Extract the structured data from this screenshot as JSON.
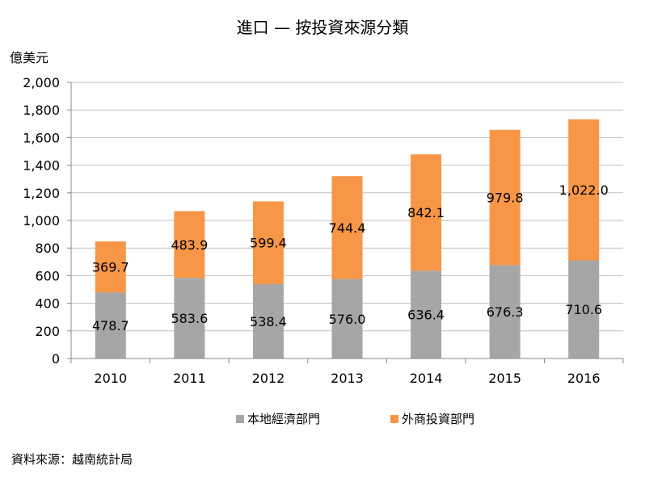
{
  "chart_data": {
    "type": "bar",
    "stacked": true,
    "title": "進口 — 按投資來源分類",
    "ylabel": "億美元",
    "xlabel": "",
    "categories": [
      "2010",
      "2011",
      "2012",
      "2013",
      "2014",
      "2015",
      "2016"
    ],
    "series": [
      {
        "name": "本地經濟部門",
        "color": "#a6a6a6",
        "values": [
          478.7,
          583.6,
          538.4,
          576.0,
          636.4,
          676.3,
          710.6
        ],
        "labels": [
          "478.7",
          "583.6",
          "538.4",
          "576.0",
          "636.4",
          "676.3",
          "710.6"
        ]
      },
      {
        "name": "外商投資部門",
        "color": "#f79646",
        "values": [
          369.7,
          483.9,
          599.4,
          744.4,
          842.1,
          979.8,
          1022.0
        ],
        "labels": [
          "369.7",
          "483.9",
          "599.4",
          "744.4",
          "842.1",
          "979.8",
          "1,022.0"
        ]
      }
    ],
    "ylim": [
      0,
      2000
    ],
    "yticks": [
      0,
      200,
      400,
      600,
      800,
      1000,
      1200,
      1400,
      1600,
      1800,
      2000
    ],
    "ytick_labels": [
      "0",
      "200",
      "400",
      "600",
      "800",
      "1,000",
      "1,200",
      "1,400",
      "1,600",
      "1,800",
      "2,000"
    ],
    "grid": true,
    "legend_position": "bottom"
  },
  "source": "資料來源：越南統計局"
}
